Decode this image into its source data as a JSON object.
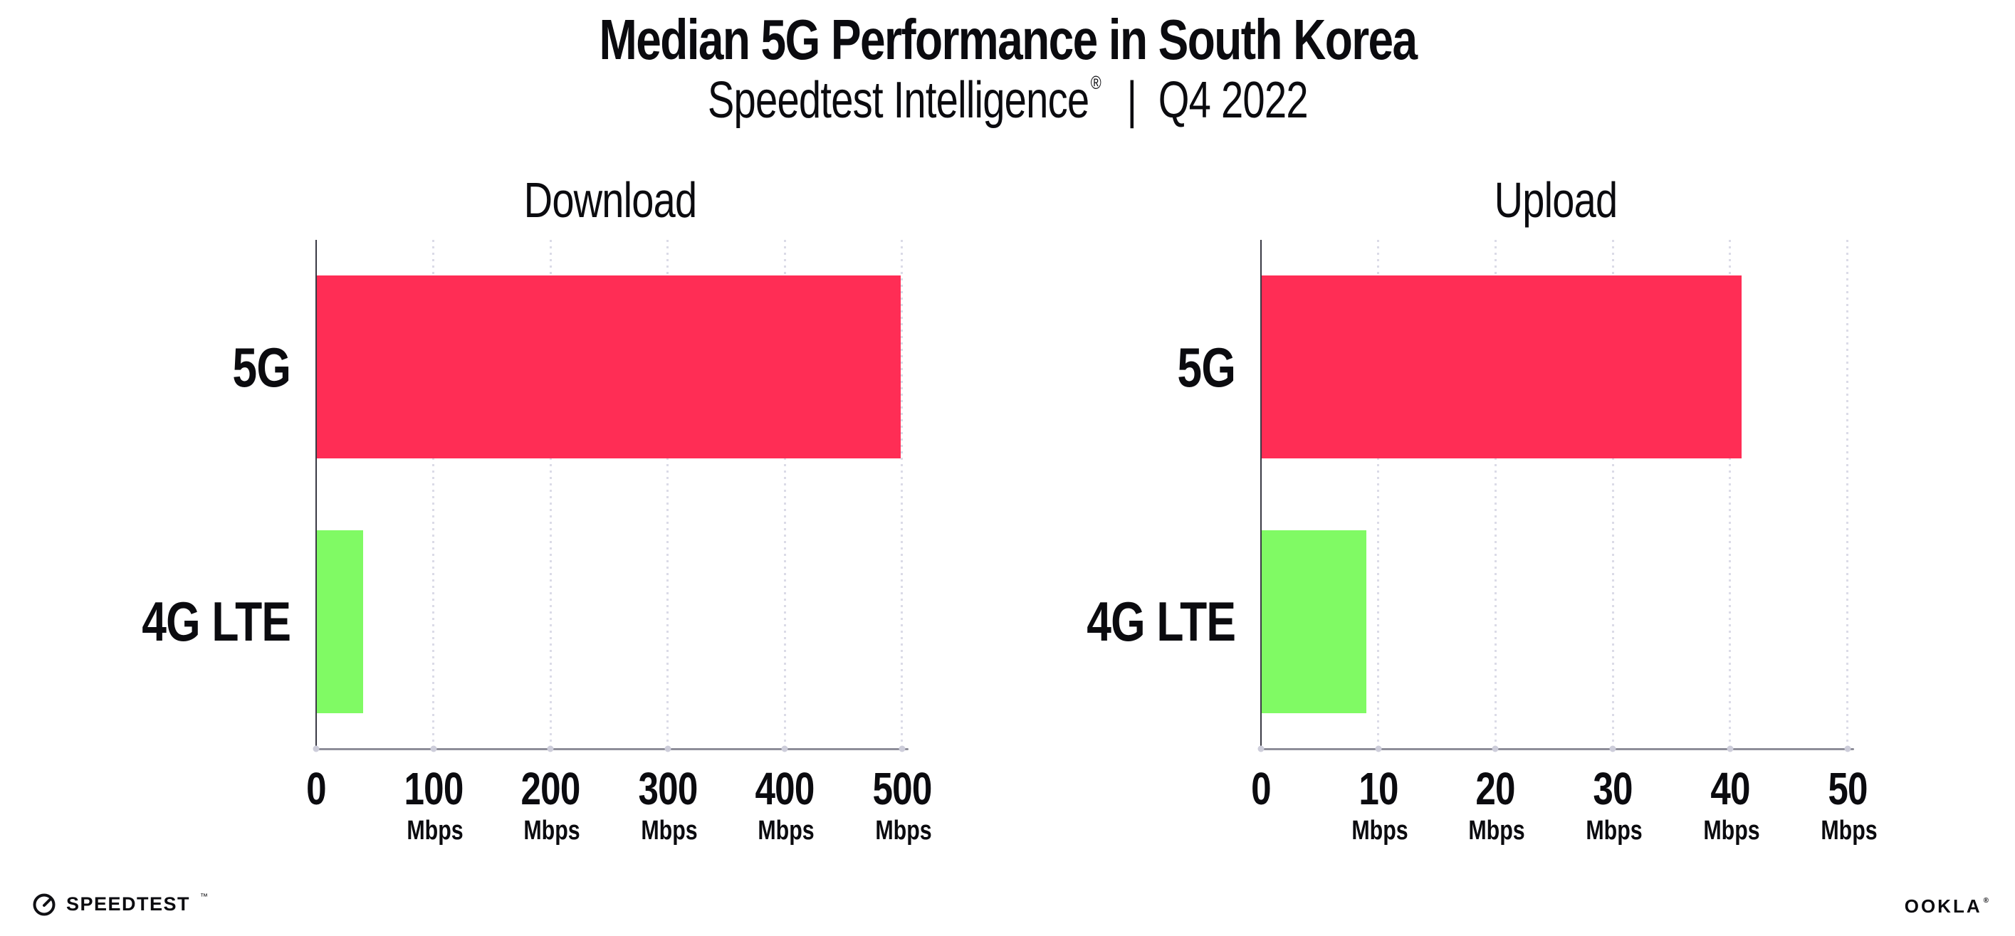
{
  "header": {
    "title": "Median 5G Performance in South Korea",
    "subtitle_brand": "Speedtest Intelligence",
    "subtitle_reg": "®",
    "subtitle_sep": "|",
    "subtitle_period": "Q4 2022"
  },
  "footer": {
    "speedtest_label": "SPEEDTEST",
    "speedtest_tm": "™",
    "ookla_label": "OOKLA",
    "ookla_reg": "®"
  },
  "colors": {
    "bar_5g": "#FF2D55",
    "bar_4g_lte": "#80FA64",
    "grid_dots": "#DBDBE7",
    "y_axis": "#3A3A44",
    "x_axis": "#8E8E99",
    "tick_dots": "#CDCDDA",
    "text": "#0B0B0F",
    "background": "#FFFFFF"
  },
  "chart_data": [
    {
      "type": "bar",
      "orientation": "horizontal",
      "title": "Download",
      "categories": [
        "5G",
        "4G LTE"
      ],
      "values": [
        499,
        40
      ],
      "unit": "Mbps",
      "xlim": [
        0,
        502
      ],
      "xticks": [
        0,
        100,
        200,
        300,
        400,
        500
      ],
      "xtick_unit": "Mbps",
      "grid": "vertical-dotted",
      "legend": false,
      "bar_colors": [
        "#FF2D55",
        "#80FA64"
      ]
    },
    {
      "type": "bar",
      "orientation": "horizontal",
      "title": "Upload",
      "categories": [
        "5G",
        "4G LTE"
      ],
      "values": [
        41,
        9
      ],
      "unit": "Mbps",
      "xlim": [
        0,
        50.2
      ],
      "xticks": [
        0,
        10,
        20,
        30,
        40,
        50
      ],
      "xtick_unit": "Mbps",
      "grid": "vertical-dotted",
      "legend": false,
      "bar_colors": [
        "#FF2D55",
        "#80FA64"
      ]
    }
  ]
}
